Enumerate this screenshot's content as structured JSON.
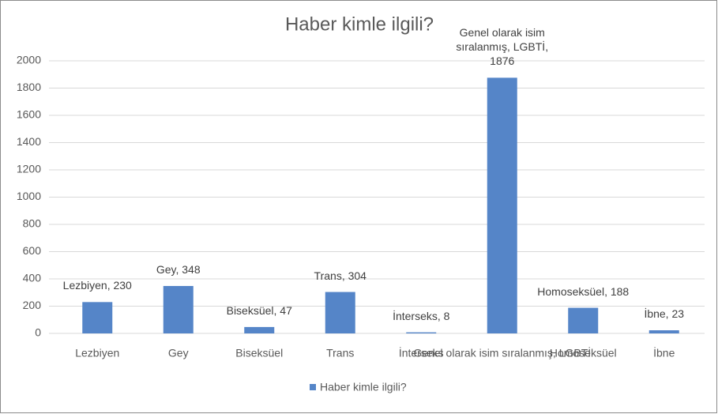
{
  "chart_data": {
    "type": "bar",
    "title": "Haber kimle ilgili?",
    "categories": [
      "Lezbiyen",
      "Gey",
      "Biseksüel",
      "Trans",
      "İnterseks",
      "Genel olarak isim sıralanmış, LGBTİ",
      "Homoseksüel",
      "İbne"
    ],
    "series": [
      {
        "name": "Haber kimle ilgili?",
        "color": "#5585c8",
        "values": [
          230,
          348,
          47,
          304,
          8,
          1876,
          188,
          23
        ],
        "value_labels": [
          "Lezbiyen, 230",
          "Gey, 348",
          "Biseksüel, 47",
          "Trans, 304",
          "İnterseks, 8",
          "Genel olarak isim sıralanmış, LGBTİ, 1876",
          "Homoseksüel, 188",
          "İbne, 23"
        ]
      }
    ],
    "ylim": [
      0,
      2000
    ],
    "yticks": [
      0,
      200,
      400,
      600,
      800,
      1000,
      1200,
      1400,
      1600,
      1800,
      2000
    ],
    "grid": true,
    "legend": "bottom"
  }
}
